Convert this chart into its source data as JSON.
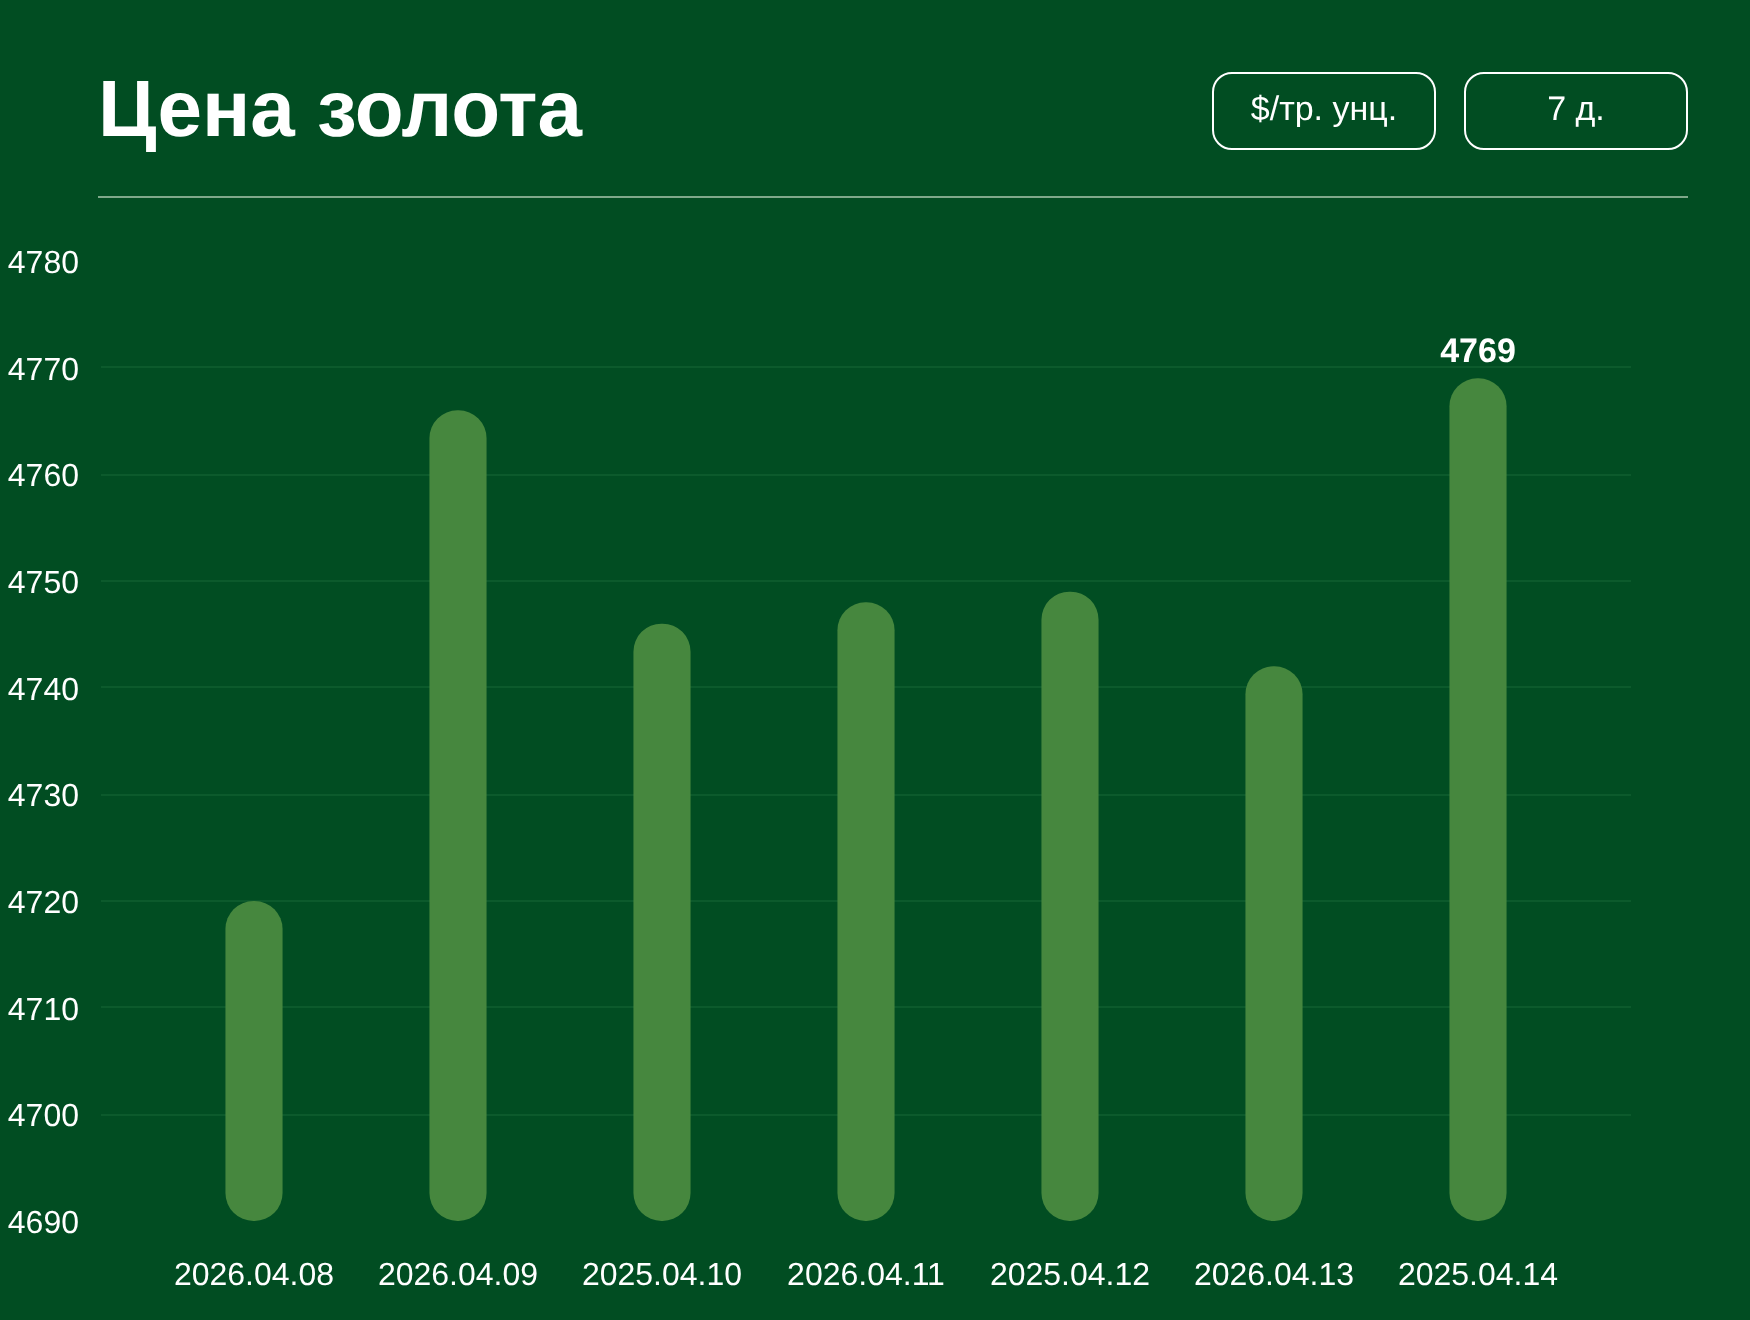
{
  "chart_data": {
    "type": "bar",
    "title": "Цена золота",
    "annotations": [
      "$/тр. унц.",
      "7 д."
    ],
    "categories": [
      "2026.04.08",
      "2026.04.09",
      "2025.04.10",
      "2026.04.11",
      "2025.04.12",
      "2026.04.13",
      "2025.04.14"
    ],
    "values": [
      4720,
      4766,
      4746,
      4748,
      4749,
      4742,
      4769
    ],
    "value_labels": [
      null,
      null,
      null,
      null,
      null,
      null,
      "4769"
    ],
    "color": "#46873e",
    "ylim": [
      4690,
      4780
    ],
    "yticks": [
      4690,
      4700,
      4710,
      4720,
      4730,
      4740,
      4750,
      4760,
      4770,
      4780
    ],
    "grid": "y"
  }
}
